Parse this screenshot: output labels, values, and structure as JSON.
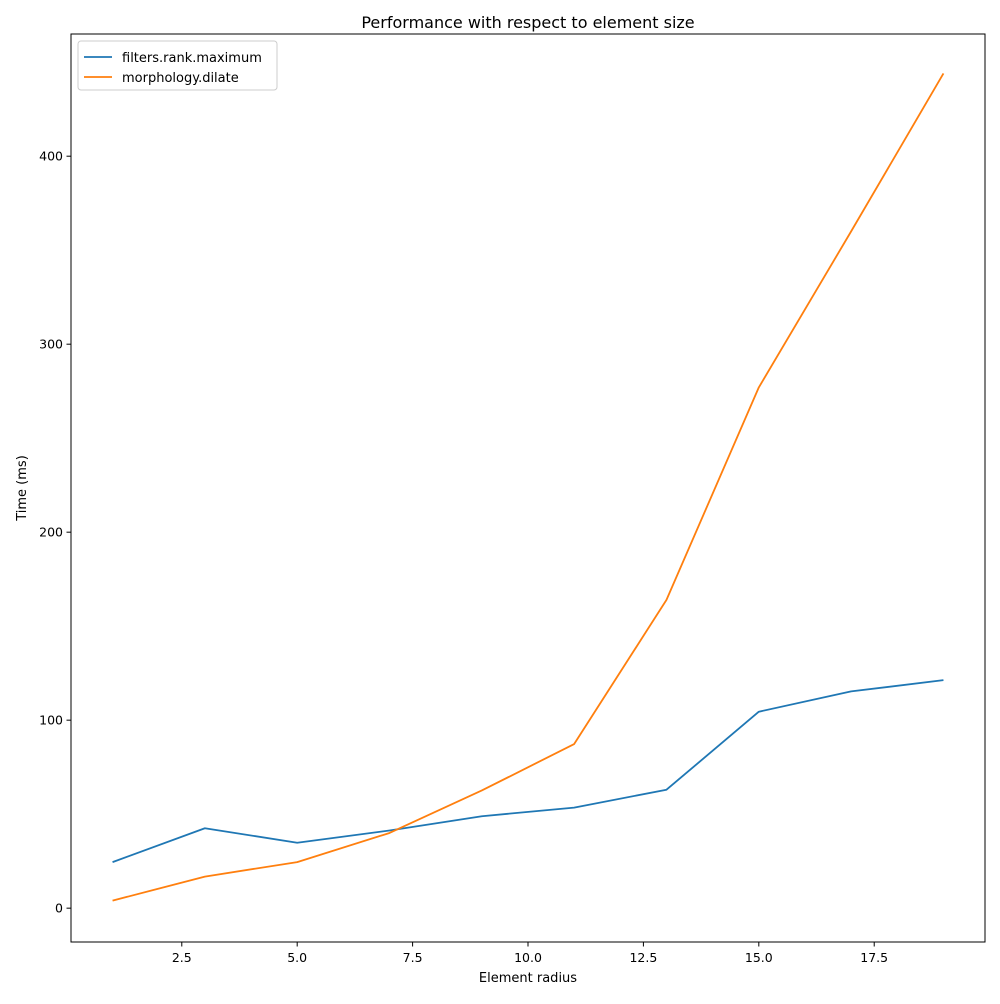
{
  "chart_data": {
    "type": "line",
    "title": "Performance with respect to element size",
    "xlabel": "Element radius",
    "ylabel": "Time (ms)",
    "xlim": [
      0.1,
      19.9
    ],
    "ylim": [
      -18.0,
      465.0
    ],
    "xticks": [
      2.5,
      5.0,
      7.5,
      10.0,
      12.5,
      15.0,
      17.5
    ],
    "xtick_labels": [
      "2.5",
      "5.0",
      "7.5",
      "10.0",
      "12.5",
      "15.0",
      "17.5"
    ],
    "yticks": [
      0,
      100,
      200,
      300,
      400
    ],
    "ytick_labels": [
      "0",
      "100",
      "200",
      "300",
      "400"
    ],
    "grid": false,
    "legend_position": "top-left",
    "x": [
      1,
      3,
      5,
      7,
      9,
      11,
      13,
      15,
      17,
      19
    ],
    "series": [
      {
        "name": "filters.rank.maximum",
        "color": "#1f77b4",
        "values": [
          24.5,
          42.5,
          34.8,
          41.3,
          48.9,
          53.5,
          63.0,
          104.5,
          115.3,
          121.3
        ]
      },
      {
        "name": "morphology.dilate",
        "color": "#ff7f0e",
        "values": [
          4.0,
          16.8,
          24.5,
          40.0,
          62.6,
          87.3,
          164.0,
          277.0,
          360.0,
          444.0
        ]
      }
    ]
  }
}
